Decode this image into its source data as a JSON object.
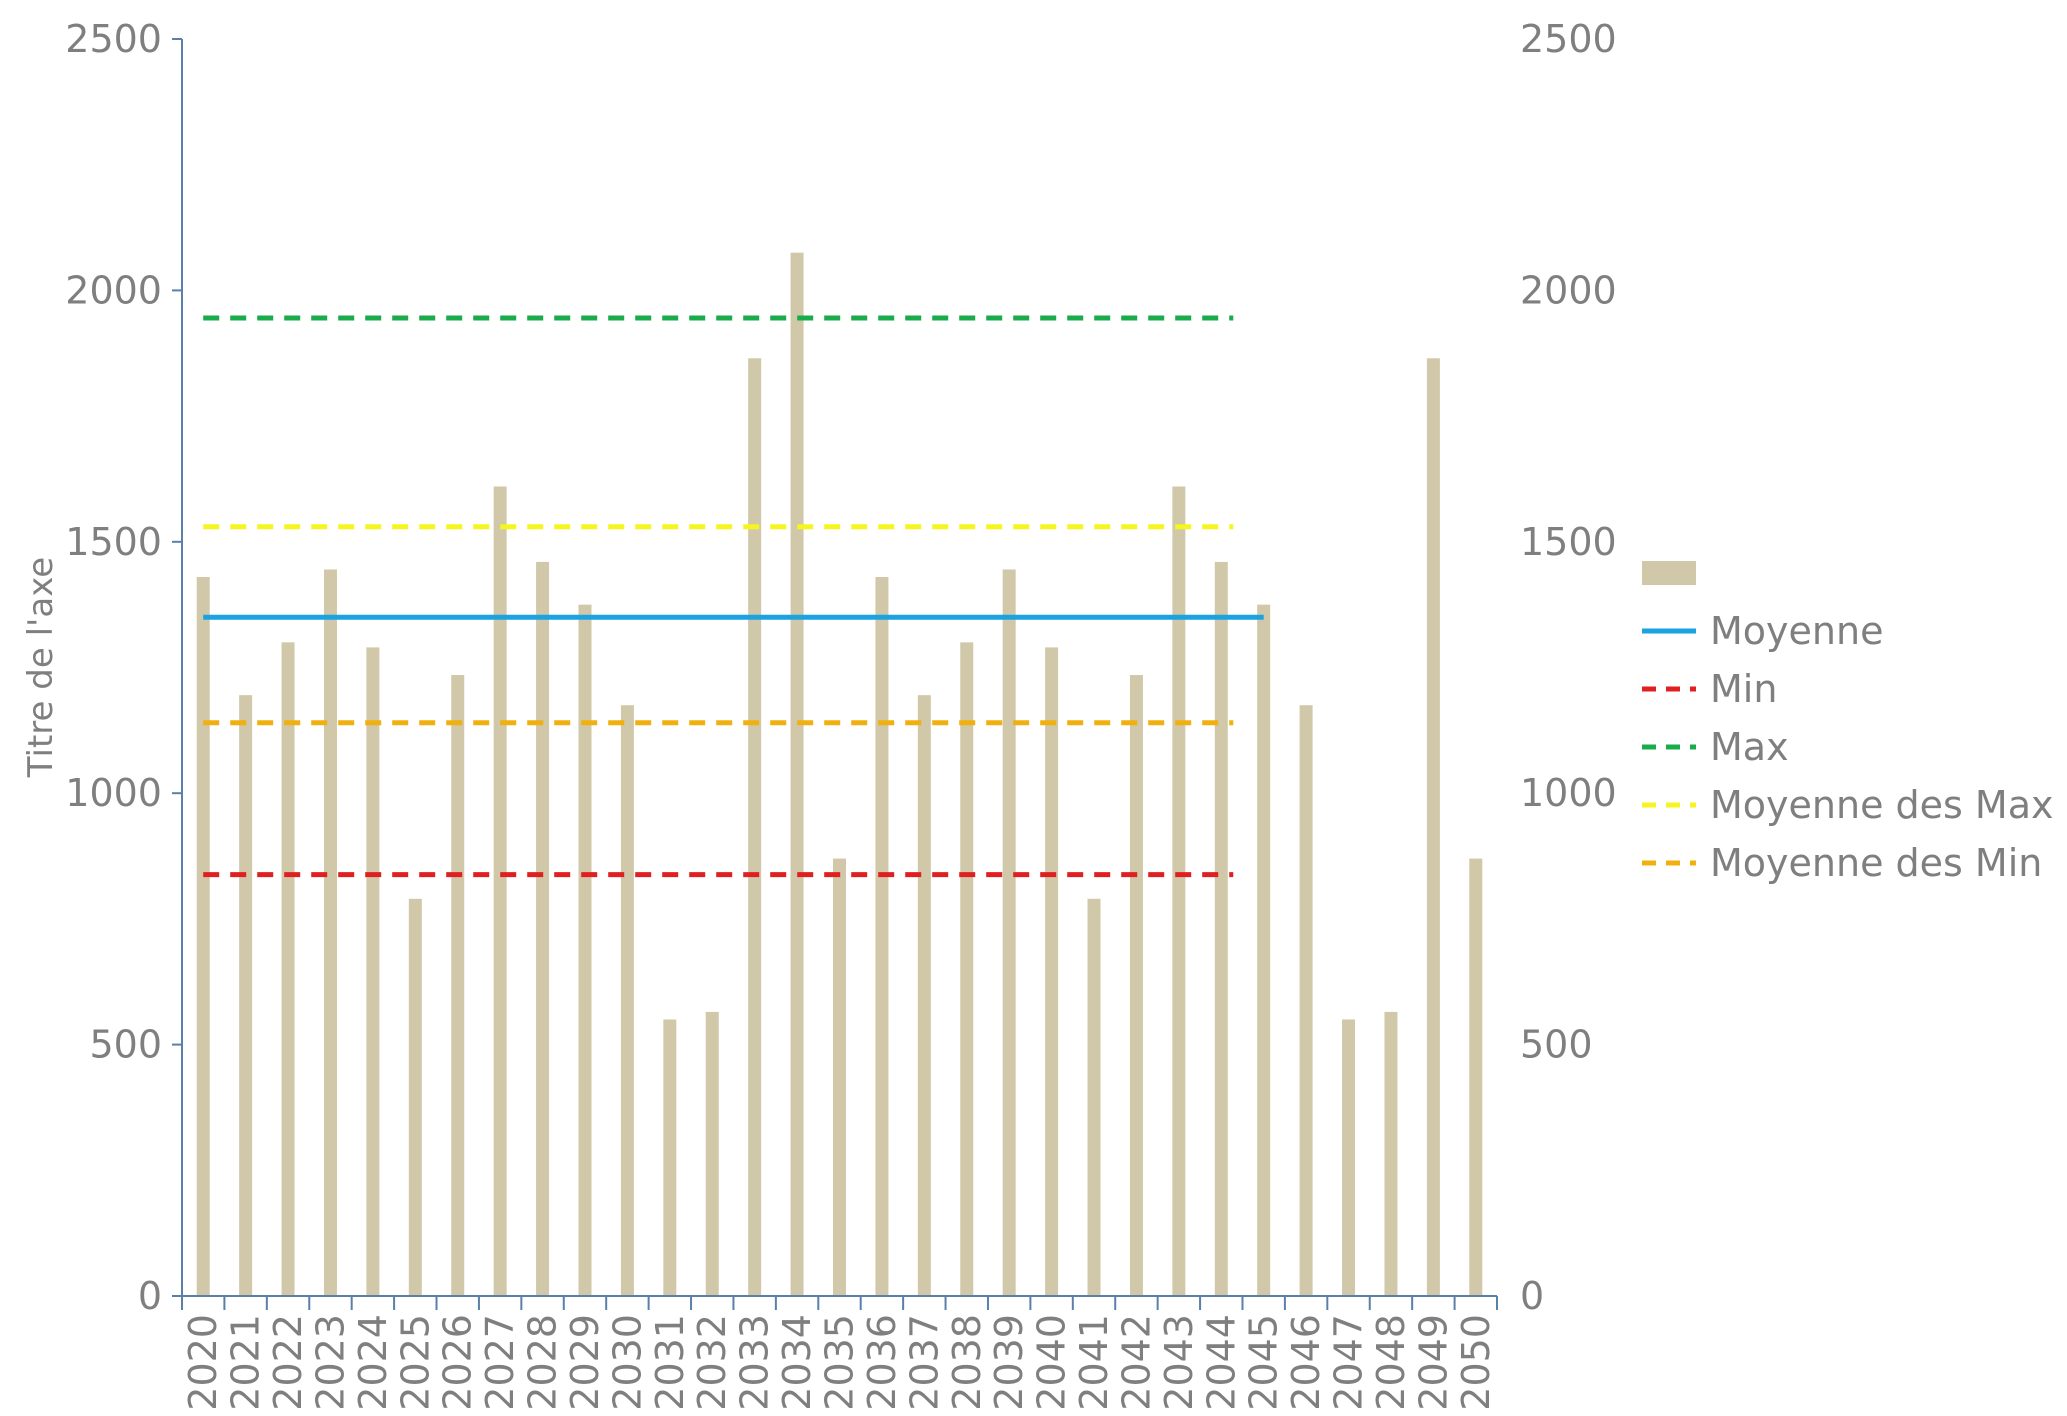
{
  "chart_data": {
    "type": "bar",
    "categories": [
      "2020",
      "2021",
      "2022",
      "2023",
      "2024",
      "2025",
      "2026",
      "2027",
      "2028",
      "2029",
      "2030",
      "2031",
      "2032",
      "2033",
      "2034",
      "2035",
      "2036",
      "2037",
      "2038",
      "2039",
      "2040",
      "2041",
      "2042",
      "2043",
      "2044",
      "2045",
      "2046",
      "2047",
      "2048",
      "2049",
      "2050"
    ],
    "series": [
      {
        "name": "",
        "kind": "bar",
        "color": "#d0c8a8",
        "values": [
          1430,
          1195,
          1300,
          1445,
          1290,
          790,
          1235,
          1610,
          1460,
          1375,
          1175,
          550,
          565,
          1865,
          2075,
          870,
          1430,
          1195,
          1300,
          1445,
          1290,
          790,
          1235,
          1610,
          1460,
          1375,
          1175,
          550,
          565,
          1865,
          870
        ]
      }
    ],
    "lines": [
      {
        "name": "Moyenne",
        "value": 1350,
        "color": "#1aa3e0",
        "dash": "solid",
        "from": "2020",
        "to": "2045"
      },
      {
        "name": "Min",
        "value": 838,
        "color": "#e02020",
        "dash": "dashed",
        "from": "2020",
        "to": "2044"
      },
      {
        "name": "Max",
        "value": 1945,
        "color": "#1aab4a",
        "dash": "dashed",
        "from": "2020",
        "to": "2044"
      },
      {
        "name": "Moyenne des Max",
        "value": 1530,
        "color": "#f5f520",
        "dash": "dashed",
        "from": "2020",
        "to": "2044"
      },
      {
        "name": "Moyenne des Min",
        "value": 1140,
        "color": "#f0b010",
        "dash": "dashed",
        "from": "2020",
        "to": "2044"
      }
    ],
    "ylabel": "Titre de l'axe",
    "ylim": [
      0,
      2500
    ],
    "yticks": [
      0,
      500,
      1000,
      1500,
      2000,
      2500
    ],
    "y2ticks": [
      0,
      500,
      1000,
      1500,
      2000,
      2500
    ],
    "grid": false,
    "legend": "right"
  }
}
